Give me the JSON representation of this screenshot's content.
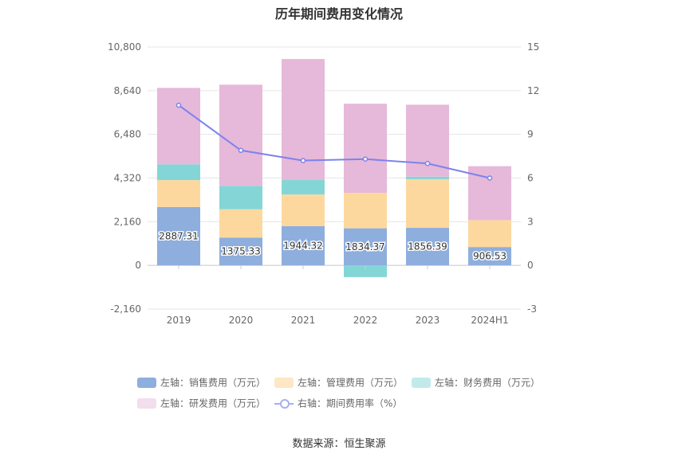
{
  "title": "历年期间费用变化情况",
  "source": "数据来源：恒生聚源",
  "colors": {
    "sales": "#8eaedd",
    "admin": "#fdd89e",
    "finance": "#84d6d6",
    "rnd": "#e6b8d9",
    "rate": "#7b83ec"
  },
  "legend": [
    {
      "label": "左轴：销售费用（万元）",
      "color": "#8eaedd",
      "type": "bar"
    },
    {
      "label": "左轴：管理费用（万元）",
      "color": "#fde7c4",
      "type": "bar"
    },
    {
      "label": "左轴：财务费用（万元）",
      "color": "#c2eaea",
      "type": "bar"
    },
    {
      "label": "左轴：研发费用（万元）",
      "color": "#f3deed",
      "type": "bar"
    },
    {
      "label": "右轴：期间费用率（%）",
      "color": "#a8aef0",
      "type": "line"
    }
  ],
  "chart_data": {
    "type": "bar",
    "stacked": true,
    "categories": [
      "2019",
      "2020",
      "2021",
      "2022",
      "2023",
      "2024H1"
    ],
    "series": [
      {
        "name": "左轴：销售费用（万元）",
        "axis": "left",
        "values": [
          2887.31,
          1375.33,
          1944.32,
          1834.37,
          1856.39,
          906.53
        ]
      },
      {
        "name": "左轴：管理费用（万元）",
        "axis": "left",
        "values": [
          1330,
          1400,
          1560,
          1750,
          2400,
          1330
        ]
      },
      {
        "name": "左轴：财务费用（万元）",
        "axis": "left",
        "values": [
          780,
          1160,
          720,
          -580,
          130,
          0
        ]
      },
      {
        "name": "左轴：研发费用（万元）",
        "axis": "left",
        "values": [
          3780,
          5000,
          5980,
          4410,
          3560,
          2670
        ]
      },
      {
        "name": "右轴：期间费用率（%）",
        "axis": "right",
        "type": "line",
        "values": [
          11.0,
          7.9,
          7.2,
          7.3,
          7.0,
          6.0
        ]
      }
    ],
    "data_labels": [
      "2887.31",
      "1375.33",
      "1944.32",
      "1834.37",
      "1856.39",
      "906.53"
    ],
    "y_left": {
      "min": -2160,
      "max": 10800,
      "ticks": [
        -2160,
        0,
        2160,
        4320,
        6480,
        8640,
        10800
      ],
      "tick_labels": [
        "-2,160",
        "0",
        "2,160",
        "4,320",
        "6,480",
        "8,640",
        "10,800"
      ]
    },
    "y_right": {
      "min": -3,
      "max": 15,
      "ticks": [
        -3,
        0,
        3,
        6,
        9,
        12,
        15
      ],
      "tick_labels": [
        "-3",
        "0",
        "3",
        "6",
        "9",
        "12",
        "15"
      ]
    },
    "grid": true,
    "legend_position": "bottom"
  }
}
